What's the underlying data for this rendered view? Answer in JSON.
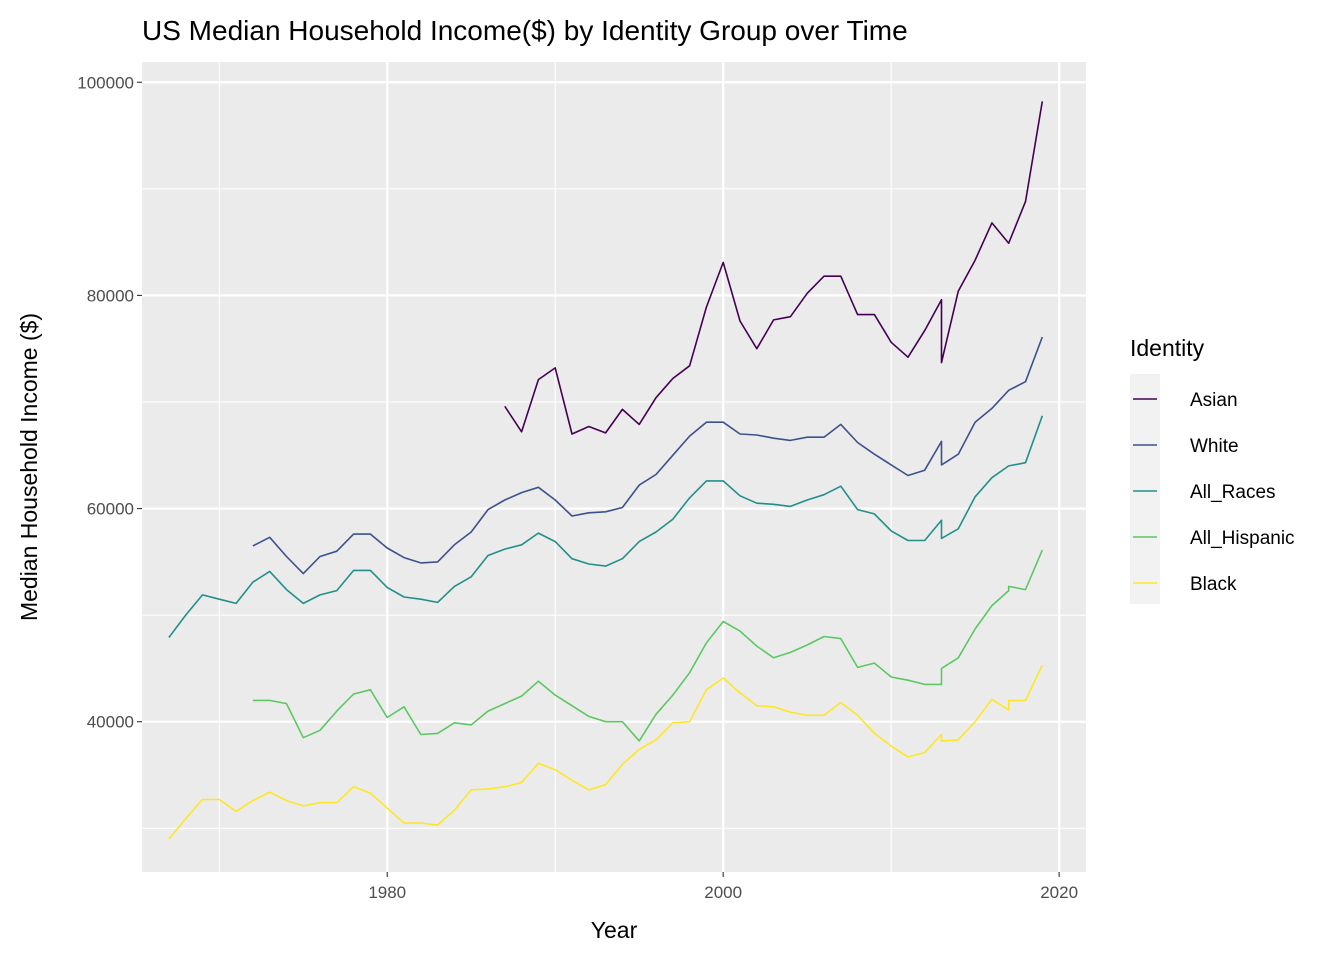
{
  "chart_data": {
    "type": "line",
    "title": "US Median Household Income($) by Identity Group over Time",
    "xlabel": "Year",
    "ylabel": "Median Household Income ($)",
    "xlim": [
      1965.4,
      2021.6
    ],
    "ylim": [
      25900,
      101900
    ],
    "x_ticks": [
      1980,
      2000,
      2020
    ],
    "y_ticks": [
      40000,
      60000,
      80000,
      100000
    ],
    "x_tick_labels": [
      "1980",
      "2000",
      "2020"
    ],
    "y_tick_labels": [
      "40000",
      "60000",
      "80000",
      "100000"
    ],
    "grid": true,
    "panel_background": "#ebebeb",
    "legend": {
      "title": "Identity",
      "position": "right"
    },
    "series": [
      {
        "name": "Asian",
        "color": "#440154",
        "points": [
          [
            1987,
            69600
          ],
          [
            1988,
            67200
          ],
          [
            1989,
            72100
          ],
          [
            1990,
            73200
          ],
          [
            1991,
            67000
          ],
          [
            1992,
            67700
          ],
          [
            1993,
            67100
          ],
          [
            1994,
            69300
          ],
          [
            1995,
            67900
          ],
          [
            1996,
            70400
          ],
          [
            1997,
            72200
          ],
          [
            1998,
            73400
          ],
          [
            1999,
            78900
          ],
          [
            2000,
            83100
          ],
          [
            2001,
            77600
          ],
          [
            2002,
            75000
          ],
          [
            2003,
            77700
          ],
          [
            2004,
            78000
          ],
          [
            2005,
            80200
          ],
          [
            2006,
            81800
          ],
          [
            2007,
            81800
          ],
          [
            2008,
            78200
          ],
          [
            2009,
            78200
          ],
          [
            2010,
            75600
          ],
          [
            2011,
            74200
          ],
          [
            2012,
            76700
          ],
          [
            2013,
            79600
          ],
          [
            2013,
            73700
          ],
          [
            2014,
            80400
          ],
          [
            2015,
            83300
          ],
          [
            2016,
            86800
          ],
          [
            2017,
            84900
          ],
          [
            2018,
            88800
          ],
          [
            2019,
            98200
          ]
        ]
      },
      {
        "name": "White",
        "color": "#3b528b",
        "points": [
          [
            1972,
            56500
          ],
          [
            1973,
            57300
          ],
          [
            1974,
            55500
          ],
          [
            1975,
            53900
          ],
          [
            1976,
            55500
          ],
          [
            1977,
            56000
          ],
          [
            1978,
            57600
          ],
          [
            1979,
            57600
          ],
          [
            1980,
            56300
          ],
          [
            1981,
            55400
          ],
          [
            1982,
            54900
          ],
          [
            1983,
            55000
          ],
          [
            1984,
            56600
          ],
          [
            1985,
            57800
          ],
          [
            1986,
            59900
          ],
          [
            1987,
            60800
          ],
          [
            1988,
            61500
          ],
          [
            1989,
            62000
          ],
          [
            1990,
            60800
          ],
          [
            1991,
            59300
          ],
          [
            1992,
            59600
          ],
          [
            1993,
            59700
          ],
          [
            1994,
            60100
          ],
          [
            1995,
            62200
          ],
          [
            1996,
            63200
          ],
          [
            1997,
            65000
          ],
          [
            1998,
            66800
          ],
          [
            1999,
            68100
          ],
          [
            2000,
            68100
          ],
          [
            2001,
            67000
          ],
          [
            2002,
            66900
          ],
          [
            2003,
            66600
          ],
          [
            2004,
            66400
          ],
          [
            2005,
            66700
          ],
          [
            2006,
            66700
          ],
          [
            2007,
            67900
          ],
          [
            2008,
            66200
          ],
          [
            2009,
            65100
          ],
          [
            2010,
            64100
          ],
          [
            2011,
            63100
          ],
          [
            2012,
            63600
          ],
          [
            2013,
            66300
          ],
          [
            2013,
            64100
          ],
          [
            2014,
            65100
          ],
          [
            2015,
            68100
          ],
          [
            2016,
            69400
          ],
          [
            2017,
            71100
          ],
          [
            2018,
            71900
          ],
          [
            2019,
            76100
          ]
        ]
      },
      {
        "name": "All_Races",
        "color": "#21908c",
        "points": [
          [
            1967,
            47900
          ],
          [
            1968,
            50000
          ],
          [
            1969,
            51900
          ],
          [
            1970,
            51500
          ],
          [
            1971,
            51100
          ],
          [
            1972,
            53100
          ],
          [
            1973,
            54100
          ],
          [
            1974,
            52400
          ],
          [
            1975,
            51100
          ],
          [
            1976,
            51900
          ],
          [
            1977,
            52300
          ],
          [
            1978,
            54200
          ],
          [
            1979,
            54200
          ],
          [
            1980,
            52600
          ],
          [
            1981,
            51700
          ],
          [
            1982,
            51500
          ],
          [
            1983,
            51200
          ],
          [
            1984,
            52700
          ],
          [
            1985,
            53600
          ],
          [
            1986,
            55600
          ],
          [
            1987,
            56200
          ],
          [
            1988,
            56600
          ],
          [
            1989,
            57700
          ],
          [
            1990,
            56900
          ],
          [
            1991,
            55300
          ],
          [
            1992,
            54800
          ],
          [
            1993,
            54600
          ],
          [
            1994,
            55300
          ],
          [
            1995,
            56900
          ],
          [
            1996,
            57800
          ],
          [
            1997,
            59000
          ],
          [
            1998,
            61000
          ],
          [
            1999,
            62600
          ],
          [
            2000,
            62600
          ],
          [
            2001,
            61200
          ],
          [
            2002,
            60500
          ],
          [
            2003,
            60400
          ],
          [
            2004,
            60200
          ],
          [
            2005,
            60800
          ],
          [
            2006,
            61300
          ],
          [
            2007,
            62100
          ],
          [
            2008,
            59900
          ],
          [
            2009,
            59500
          ],
          [
            2010,
            57900
          ],
          [
            2011,
            57000
          ],
          [
            2012,
            57000
          ],
          [
            2013,
            58900
          ],
          [
            2013,
            57200
          ],
          [
            2014,
            58100
          ],
          [
            2015,
            61100
          ],
          [
            2016,
            62900
          ],
          [
            2017,
            64000
          ],
          [
            2018,
            64300
          ],
          [
            2019,
            68700
          ]
        ]
      },
      {
        "name": "All_Hispanic",
        "color": "#5dc863",
        "points": [
          [
            1972,
            42000
          ],
          [
            1973,
            42000
          ],
          [
            1974,
            41700
          ],
          [
            1975,
            38500
          ],
          [
            1976,
            39200
          ],
          [
            1977,
            41000
          ],
          [
            1978,
            42600
          ],
          [
            1979,
            43000
          ],
          [
            1980,
            40400
          ],
          [
            1981,
            41400
          ],
          [
            1982,
            38800
          ],
          [
            1983,
            38900
          ],
          [
            1984,
            39900
          ],
          [
            1985,
            39700
          ],
          [
            1986,
            41000
          ],
          [
            1987,
            41700
          ],
          [
            1988,
            42400
          ],
          [
            1989,
            43800
          ],
          [
            1990,
            42500
          ],
          [
            1991,
            41500
          ],
          [
            1992,
            40500
          ],
          [
            1993,
            40000
          ],
          [
            1994,
            40000
          ],
          [
            1995,
            38200
          ],
          [
            1996,
            40700
          ],
          [
            1997,
            42500
          ],
          [
            1998,
            44600
          ],
          [
            1999,
            47400
          ],
          [
            2000,
            49400
          ],
          [
            2001,
            48500
          ],
          [
            2002,
            47100
          ],
          [
            2003,
            46000
          ],
          [
            2004,
            46500
          ],
          [
            2005,
            47200
          ],
          [
            2006,
            48000
          ],
          [
            2007,
            47800
          ],
          [
            2008,
            45100
          ],
          [
            2009,
            45500
          ],
          [
            2010,
            44200
          ],
          [
            2011,
            43900
          ],
          [
            2012,
            43500
          ],
          [
            2013,
            43500
          ],
          [
            2013,
            45000
          ],
          [
            2014,
            46000
          ],
          [
            2015,
            48700
          ],
          [
            2016,
            50900
          ],
          [
            2017,
            52300
          ],
          [
            2017,
            52700
          ],
          [
            2018,
            52400
          ],
          [
            2019,
            56100
          ]
        ]
      },
      {
        "name": "Black",
        "color": "#fde725",
        "points": [
          [
            1967,
            29000
          ],
          [
            1968,
            30900
          ],
          [
            1969,
            32700
          ],
          [
            1970,
            32700
          ],
          [
            1971,
            31600
          ],
          [
            1972,
            32600
          ],
          [
            1973,
            33400
          ],
          [
            1974,
            32600
          ],
          [
            1975,
            32100
          ],
          [
            1976,
            32400
          ],
          [
            1977,
            32400
          ],
          [
            1978,
            33900
          ],
          [
            1979,
            33300
          ],
          [
            1980,
            31900
          ],
          [
            1981,
            30500
          ],
          [
            1982,
            30500
          ],
          [
            1983,
            30300
          ],
          [
            1984,
            31700
          ],
          [
            1985,
            33600
          ],
          [
            1986,
            33700
          ],
          [
            1987,
            33900
          ],
          [
            1988,
            34300
          ],
          [
            1989,
            36100
          ],
          [
            1990,
            35500
          ],
          [
            1991,
            34500
          ],
          [
            1992,
            33600
          ],
          [
            1993,
            34100
          ],
          [
            1994,
            36000
          ],
          [
            1995,
            37400
          ],
          [
            1996,
            38300
          ],
          [
            1997,
            39900
          ],
          [
            1998,
            40000
          ],
          [
            1999,
            43000
          ],
          [
            2000,
            44100
          ],
          [
            2001,
            42700
          ],
          [
            2002,
            41500
          ],
          [
            2003,
            41400
          ],
          [
            2004,
            40900
          ],
          [
            2005,
            40600
          ],
          [
            2006,
            40600
          ],
          [
            2007,
            41800
          ],
          [
            2008,
            40600
          ],
          [
            2009,
            38900
          ],
          [
            2010,
            37700
          ],
          [
            2011,
            36700
          ],
          [
            2012,
            37100
          ],
          [
            2013,
            38800
          ],
          [
            2013,
            38200
          ],
          [
            2014,
            38300
          ],
          [
            2015,
            40000
          ],
          [
            2016,
            42100
          ],
          [
            2017,
            41100
          ],
          [
            2017,
            42000
          ],
          [
            2018,
            42000
          ],
          [
            2019,
            45300
          ]
        ]
      }
    ]
  }
}
